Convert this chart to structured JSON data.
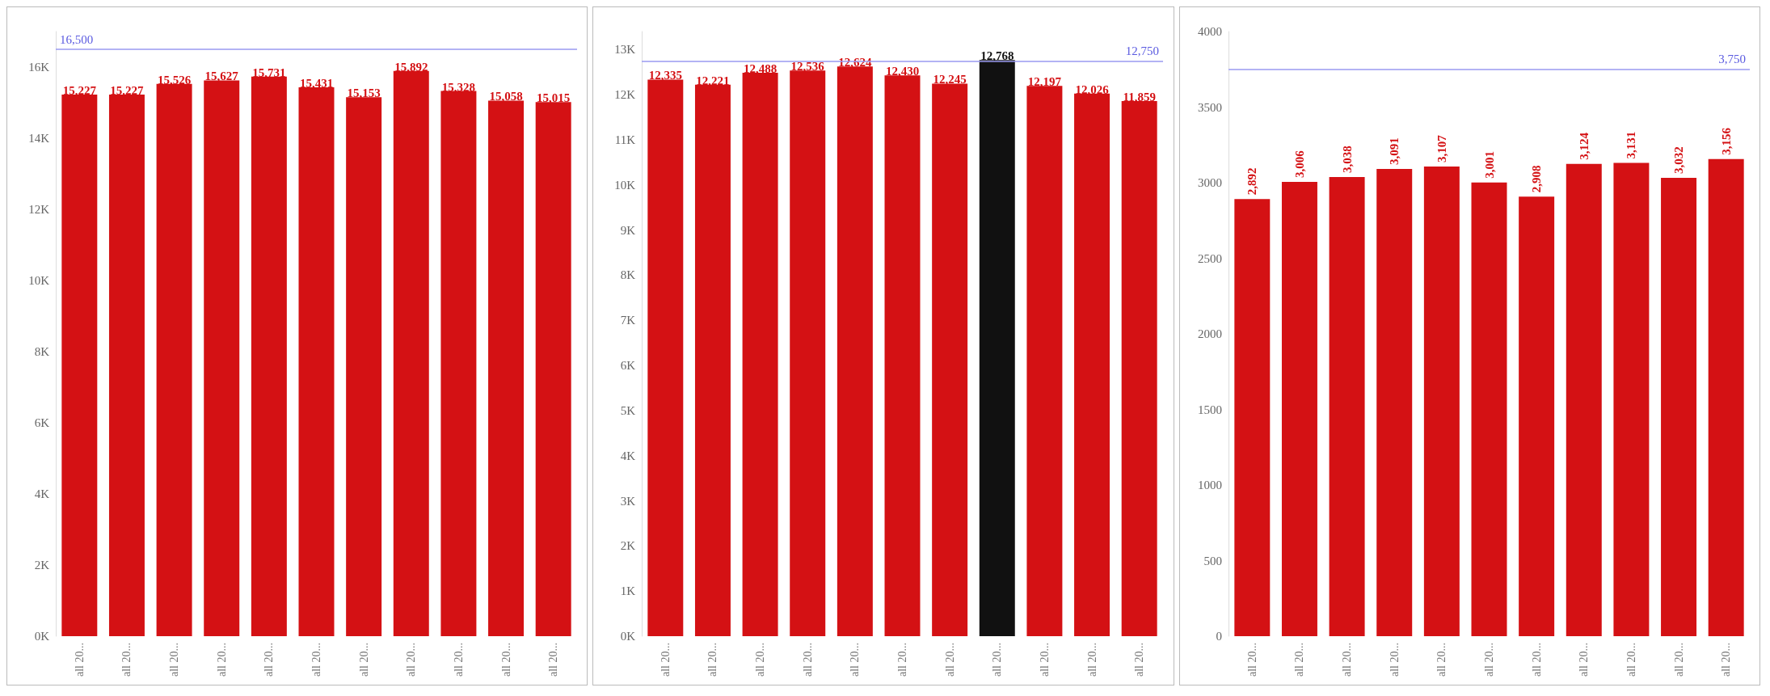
{
  "chart_data": [
    {
      "type": "bar",
      "categories": [
        "all 20...",
        "all 20...",
        "all 20...",
        "all 20...",
        "all 20...",
        "all 20...",
        "all 20...",
        "all 20...",
        "all 20...",
        "all 20...",
        "all 20..."
      ],
      "values": [
        15227,
        15227,
        15526,
        15627,
        15731,
        15431,
        15153,
        15892,
        15328,
        15058,
        15015
      ],
      "colors": [
        "#d41114",
        "#d41114",
        "#d41114",
        "#d41114",
        "#d41114",
        "#d41114",
        "#d41114",
        "#d41114",
        "#d41114",
        "#d41114",
        "#d41114"
      ],
      "value_labels": [
        "15,227",
        "15,227",
        "15,526",
        "15,627",
        "15,731",
        "15,431",
        "15,153",
        "15,892",
        "15,328",
        "15,058",
        "15,015"
      ],
      "ylim": [
        0,
        17000
      ],
      "yticks": [
        {
          "value": 0,
          "label": "0K"
        },
        {
          "value": 2000,
          "label": "2K"
        },
        {
          "value": 4000,
          "label": "4K"
        },
        {
          "value": 6000,
          "label": "6K"
        },
        {
          "value": 8000,
          "label": "8K"
        },
        {
          "value": 10000,
          "label": "10K"
        },
        {
          "value": 12000,
          "label": "12K"
        },
        {
          "value": 14000,
          "label": "14K"
        },
        {
          "value": 16000,
          "label": "16K"
        }
      ],
      "ref_lines": [
        {
          "axis": "y",
          "value": 16500,
          "label": "16,500",
          "color": "#9a9af0"
        }
      ]
    },
    {
      "type": "bar",
      "categories": [
        "all 20...",
        "all 20...",
        "all 20...",
        "all 20...",
        "all 20...",
        "all 20...",
        "all 20...",
        "all 20...",
        "all 20...",
        "all 20...",
        "all 20..."
      ],
      "values": [
        12335,
        12221,
        12488,
        12536,
        12624,
        12430,
        12245,
        12768,
        12197,
        12026,
        11859
      ],
      "colors": [
        "#d41114",
        "#d41114",
        "#d41114",
        "#d41114",
        "#d41114",
        "#d41114",
        "#d41114",
        "#111111",
        "#d41114",
        "#d41114",
        "#d41114"
      ],
      "value_labels": [
        "12,335",
        "12,221",
        "12,488",
        "12,536",
        "12,624",
        "12,430",
        "12,245",
        "12,768",
        "12,197",
        "12,026",
        "11,859"
      ],
      "ylim": [
        0,
        13400
      ],
      "yticks": [
        {
          "value": 0,
          "label": "0K"
        },
        {
          "value": 1000,
          "label": "1K"
        },
        {
          "value": 2000,
          "label": "2K"
        },
        {
          "value": 3000,
          "label": "3K"
        },
        {
          "value": 4000,
          "label": "4K"
        },
        {
          "value": 5000,
          "label": "5K"
        },
        {
          "value": 6000,
          "label": "6K"
        },
        {
          "value": 7000,
          "label": "7K"
        },
        {
          "value": 8000,
          "label": "8K"
        },
        {
          "value": 9000,
          "label": "9K"
        },
        {
          "value": 10000,
          "label": "10K"
        },
        {
          "value": 11000,
          "label": "11K"
        },
        {
          "value": 12000,
          "label": "12K"
        },
        {
          "value": 13000,
          "label": "13K"
        }
      ],
      "ref_lines": [
        {
          "axis": "y",
          "value": 12750,
          "label": "12,750",
          "color": "#9a9af0"
        }
      ]
    },
    {
      "type": "bar",
      "categories": [
        "all 20...",
        "all 20...",
        "all 20...",
        "all 20...",
        "all 20...",
        "all 20...",
        "all 20...",
        "all 20...",
        "all 20...",
        "all 20...",
        "all 20..."
      ],
      "values": [
        2892,
        3006,
        3038,
        3091,
        3107,
        3001,
        2908,
        3124,
        3131,
        3032,
        3156
      ],
      "colors": [
        "#d41114",
        "#d41114",
        "#d41114",
        "#d41114",
        "#d41114",
        "#d41114",
        "#d41114",
        "#d41114",
        "#d41114",
        "#d41114",
        "#d41114"
      ],
      "value_labels": [
        "2,892",
        "3,006",
        "3,038",
        "3,091",
        "3,107",
        "3,001",
        "2,908",
        "3,124",
        "3,131",
        "3,032",
        "3,156"
      ],
      "ylim": [
        0,
        4000
      ],
      "yticks": [
        0,
        500,
        1000,
        1500,
        2000,
        2500,
        3000,
        3500,
        4000
      ],
      "ref_lines": [
        {
          "axis": "y",
          "value": 3750,
          "label": "3,750",
          "color": "#9a9af0"
        }
      ]
    }
  ]
}
